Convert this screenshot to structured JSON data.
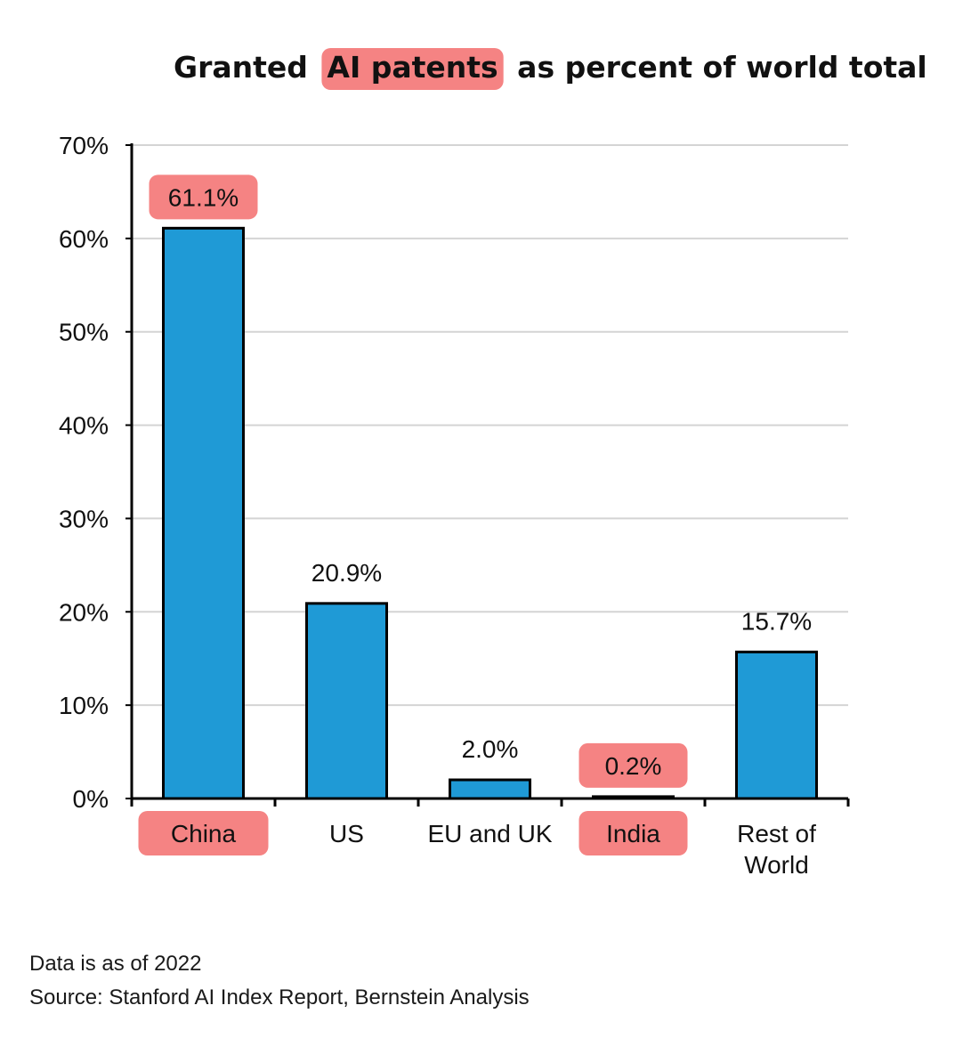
{
  "chart_data": {
    "type": "bar",
    "title": {
      "prefix": "Granted",
      "highlight": "AI patents",
      "suffix": "as percent of world total"
    },
    "categories": [
      "China",
      "US",
      "EU and UK",
      "India",
      "Rest of World"
    ],
    "values": [
      61.1,
      20.9,
      2.0,
      0.2,
      15.7
    ],
    "data_labels": [
      "61.1%",
      "20.9%",
      "2.0%",
      "0.2%",
      "15.7%"
    ],
    "highlighted_categories": [
      "China",
      "India"
    ],
    "highlighted_data_labels": [
      "61.1%",
      "0.2%"
    ],
    "ylim": [
      0,
      70
    ],
    "yticks": [
      0,
      10,
      20,
      30,
      40,
      50,
      60,
      70
    ],
    "ytick_labels": [
      "0%",
      "10%",
      "20%",
      "30%",
      "40%",
      "50%",
      "60%",
      "70%"
    ],
    "grid": true,
    "legend": "none",
    "xlabel": "",
    "ylabel": ""
  },
  "colors": {
    "bar": "#1f9ad6",
    "bar_outline": "#000000",
    "grid": "#d4d4d4",
    "axis": "#000000",
    "highlight_marker": "#f47c7c"
  },
  "footnotes": {
    "date_note": "Data is as of 2022",
    "source": "Source: Stanford AI Index Report, Bernstein Analysis"
  }
}
